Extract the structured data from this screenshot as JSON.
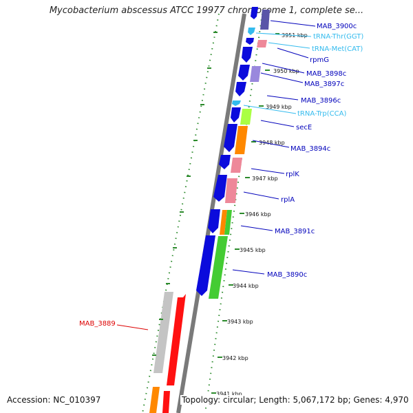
{
  "title": "Mycobacterium abscessus ATCC 19977 chromosome 1, complete se...",
  "accession": "Accession: NC_010397",
  "topology": "Topology: circular; Length: 5,067,172 bp; Genes: 4,970",
  "colors": {
    "backbone": "#7a7a7a",
    "dots": "#2b8a2b",
    "forward_label": "#0000bb",
    "trna_label": "#33bbee",
    "highlight_label": "#dd0000",
    "gene_blue": "#0b0bdc",
    "gene_green": "#44cc33",
    "gene_orange": "#ff8800",
    "gene_pink": "#ee8899",
    "gene_red": "#ff1111",
    "gene_grey": "#c4c4c4",
    "gene_lavender": "#9988dd",
    "gene_lightgreen": "#aaff44",
    "gene_cyan": "#33bbee"
  },
  "kbp_ticks": [
    "3951 kbp",
    "3950 kbp",
    "3949 kbp",
    "3948 kbp",
    "3947 kbp",
    "3946 kbp",
    "3945 kbp",
    "3944 kbp",
    "3943 kbp",
    "3942 kbp",
    "3941 kbp"
  ],
  "gene_labels": [
    {
      "name": "MAB_3900c",
      "type": "gene"
    },
    {
      "name": "tRNA-Thr(GGT)",
      "type": "trna"
    },
    {
      "name": "tRNA-Met(CAT)",
      "type": "trna"
    },
    {
      "name": "rpmG",
      "type": "gene"
    },
    {
      "name": "MAB_3898c",
      "type": "gene"
    },
    {
      "name": "MAB_3897c",
      "type": "gene"
    },
    {
      "name": "MAB_3896c",
      "type": "gene"
    },
    {
      "name": "tRNA-Trp(CCA)",
      "type": "trna"
    },
    {
      "name": "secE",
      "type": "gene"
    },
    {
      "name": "MAB_3894c",
      "type": "gene"
    },
    {
      "name": "rplK",
      "type": "gene"
    },
    {
      "name": "rplA",
      "type": "gene"
    },
    {
      "name": "MAB_3891c",
      "type": "gene"
    },
    {
      "name": "MAB_3890c",
      "type": "gene"
    },
    {
      "name": "MAB_3889",
      "type": "highlight"
    }
  ]
}
